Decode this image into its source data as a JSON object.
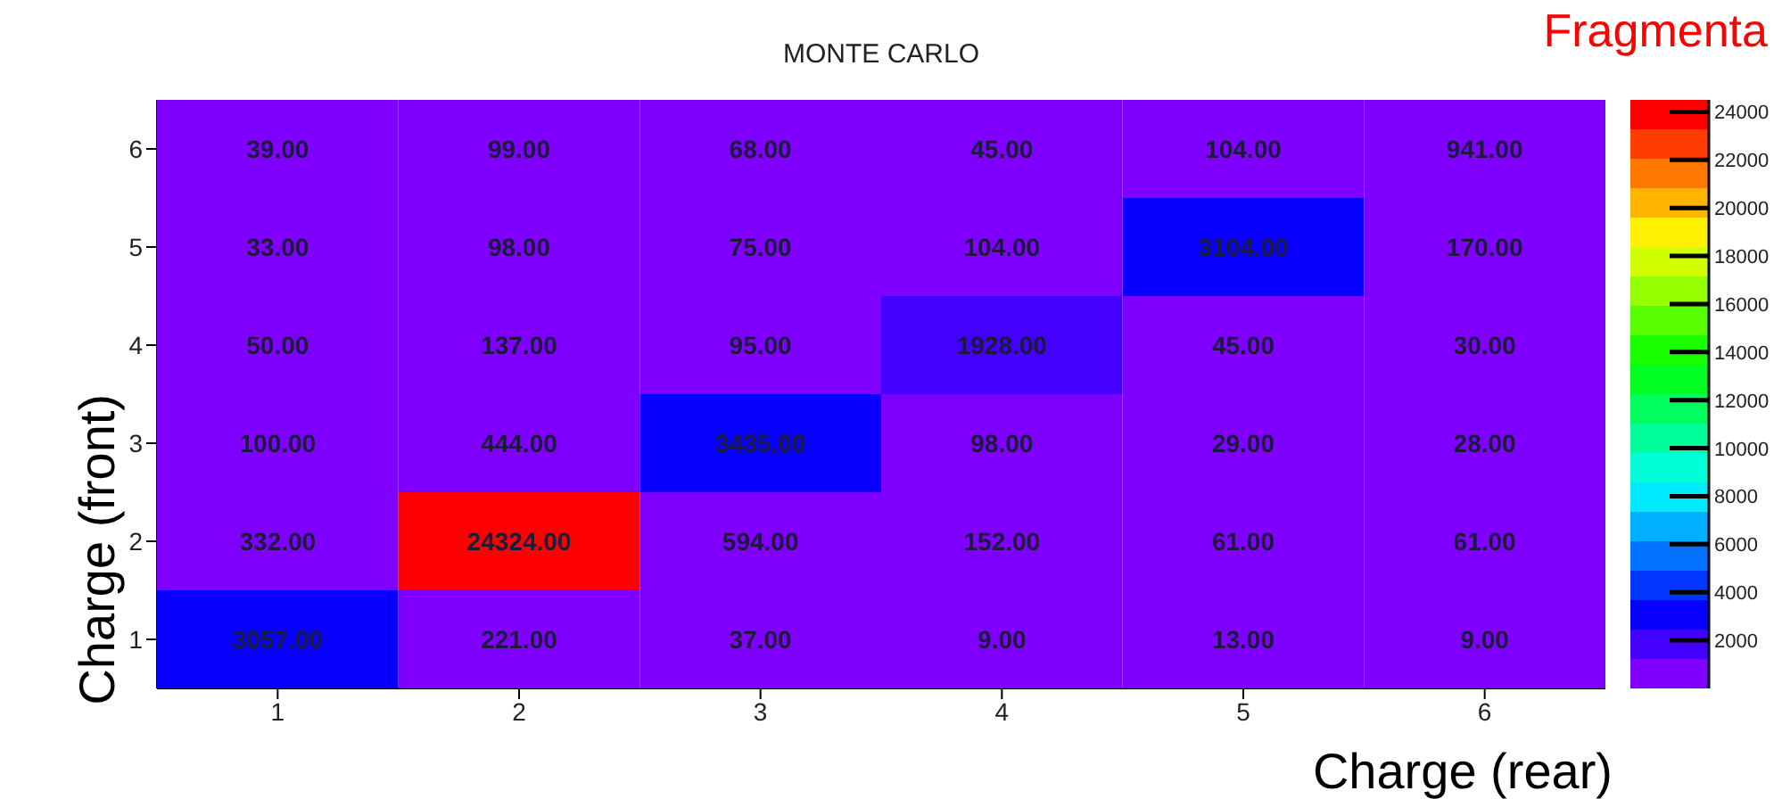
{
  "chart_data": {
    "type": "heatmap",
    "title": "MONTE CARLO",
    "xlabel": "Charge (rear)",
    "ylabel": "Charge (front)",
    "annotations": [
      "Fragmenta"
    ],
    "categories": [
      "1",
      "2",
      "3",
      "4",
      "5",
      "6"
    ],
    "y_categories": [
      "6",
      "5",
      "4",
      "3",
      "2",
      "1"
    ],
    "cells": [
      [
        39,
        99,
        68,
        45,
        104,
        941
      ],
      [
        33,
        98,
        75,
        104,
        3104,
        170
      ],
      [
        50,
        137,
        95,
        1928,
        45,
        30
      ],
      [
        100,
        444,
        3435,
        98,
        29,
        28
      ],
      [
        332,
        24324,
        594,
        152,
        61,
        61
      ],
      [
        3057,
        221,
        37,
        9,
        13,
        9
      ]
    ],
    "cell_labels": [
      [
        "39.00",
        "99.00",
        "68.00",
        "45.00",
        "104.00",
        "941.00"
      ],
      [
        "33.00",
        "98.00",
        "75.00",
        "104.00",
        "3104.00",
        "170.00"
      ],
      [
        "50.00",
        "137.00",
        "95.00",
        "1928.00",
        "45.00",
        "30.00"
      ],
      [
        "100.00",
        "444.00",
        "3435.00",
        "98.00",
        "29.00",
        "28.00"
      ],
      [
        "332.00",
        "24324.00",
        "594.00",
        "152.00",
        "61.00",
        "61.00"
      ],
      [
        "3057.00",
        "221.00",
        "37.00",
        "9.00",
        "13.00",
        "9.00"
      ]
    ],
    "clim": [
      0,
      24500
    ],
    "cticks": [
      2000,
      4000,
      6000,
      8000,
      10000,
      12000,
      14000,
      16000,
      18000,
      20000,
      22000,
      24000
    ]
  }
}
